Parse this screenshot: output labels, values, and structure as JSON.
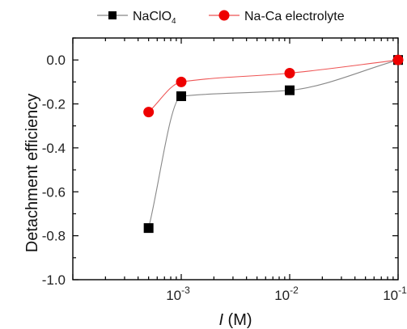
{
  "chart_data": {
    "type": "scatter",
    "xlabel": {
      "symbol": "I",
      "unit": " (M)"
    },
    "ylabel": "Detachment efficiency",
    "x_scale": "log",
    "xlim": [
      0.0001,
      0.1
    ],
    "ylim": [
      -1.0,
      0.1
    ],
    "x_ticks": [
      {
        "value": 0.001,
        "base": "10",
        "exp": "-3"
      },
      {
        "value": 0.01,
        "base": "10",
        "exp": "-2"
      },
      {
        "value": 0.1,
        "base": "10",
        "exp": "-1"
      }
    ],
    "y_ticks": [
      {
        "value": 0.0,
        "label": "0.0"
      },
      {
        "value": -0.2,
        "label": "-0.2"
      },
      {
        "value": -0.4,
        "label": "-0.4"
      },
      {
        "value": -0.6,
        "label": "-0.6"
      },
      {
        "value": -0.8,
        "label": "-0.8"
      },
      {
        "value": -1.0,
        "label": "-1.0"
      }
    ],
    "series": [
      {
        "name": "NaClO",
        "name_subscript": "4",
        "marker": "square",
        "color": "#000000",
        "line_color": "#888888",
        "x": [
          0.0005,
          0.001,
          0.01,
          0.1
        ],
        "y": [
          -0.765,
          -0.165,
          -0.138,
          0.0
        ]
      },
      {
        "name": "Na-Ca electrolyte",
        "marker": "circle",
        "color": "#ee0000",
        "line_color": "#ee5555",
        "x": [
          0.0005,
          0.001,
          0.01,
          0.1
        ],
        "y": [
          -0.237,
          -0.1,
          -0.06,
          0.0
        ]
      }
    ],
    "legend_position": "top"
  }
}
